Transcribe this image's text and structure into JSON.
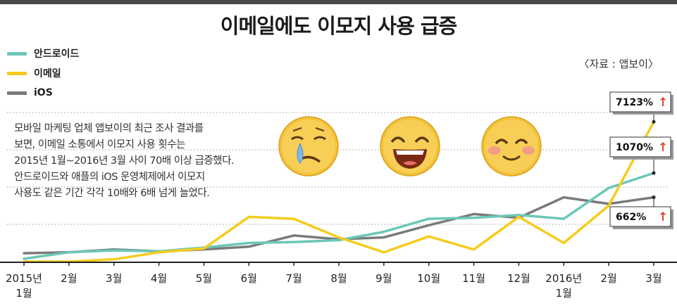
{
  "title": "이메일에도 이모지 사용 급증",
  "source": "〈자료 : 앱보이〉",
  "description": [
    "모바일 마케팅 업체 앱보이의 최근 조사 결과를",
    "보면, 이메일 소통에서 이모지 사용 횟수는",
    "2015년 1월~2016년 3월 사이 70배 이상 급증했다.",
    "안드로이드와 애플의 iOS 운영체제에서 이모지",
    "사용도 같은 기간 각각 10배와 6배 넘게 늘었다."
  ],
  "colors": {
    "android": "#6cc7b8",
    "email": "#f5cc1d",
    "ios": "#7a7a7a",
    "arrow": "#e0432b",
    "grid": "#9a9a9a"
  },
  "chart_data": {
    "type": "line",
    "title": "이메일에도 이모지 사용 급증",
    "xlabel": "",
    "ylabel": "",
    "categories": [
      "2015년\n1월",
      "2월",
      "3월",
      "4월",
      "5월",
      "6월",
      "7월",
      "8월",
      "9월",
      "10월",
      "11월",
      "12월",
      "2016년\n1월",
      "2월",
      "3월"
    ],
    "ylim": [
      0,
      8
    ],
    "grid": "horizontal dotted",
    "legend": "top-left",
    "series": [
      {
        "name": "안드로이드",
        "key": "android",
        "values": [
          0.15,
          0.5,
          0.6,
          0.55,
          0.75,
          1.0,
          1.05,
          1.15,
          1.6,
          2.3,
          2.35,
          2.5,
          2.3,
          3.95,
          4.75
        ],
        "end_label": "1070%"
      },
      {
        "name": "이메일",
        "key": "email",
        "values": [
          0.0,
          0.0,
          0.12,
          0.5,
          0.7,
          2.4,
          2.3,
          1.3,
          0.5,
          1.35,
          0.65,
          2.4,
          1.0,
          3.0,
          7.5
        ],
        "end_label": "7123%"
      },
      {
        "name": "iOS",
        "key": "ios",
        "values": [
          0.45,
          0.5,
          0.65,
          0.55,
          0.65,
          0.8,
          1.4,
          1.2,
          1.3,
          1.95,
          2.55,
          2.35,
          3.45,
          3.1,
          3.45
        ],
        "end_label": "662%"
      }
    ]
  },
  "callouts": [
    {
      "series": "email",
      "text": "7123%",
      "arrow": "↑"
    },
    {
      "series": "android",
      "text": "1070%",
      "arrow": "↑"
    },
    {
      "series": "ios",
      "text": "662%",
      "arrow": "↑"
    }
  ],
  "emojis": [
    {
      "icon": "crying-face-emoji"
    },
    {
      "icon": "laughing-face-emoji"
    },
    {
      "icon": "smiling-blush-face-emoji"
    }
  ]
}
